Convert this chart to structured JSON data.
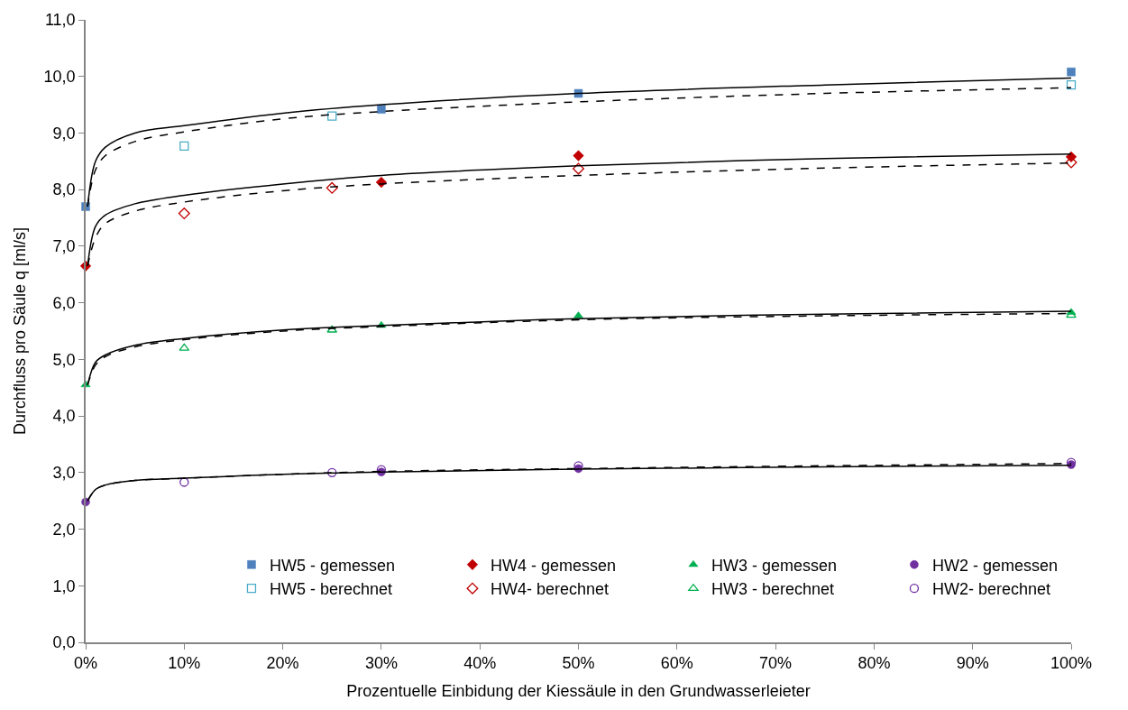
{
  "chart_data": {
    "type": "scatter",
    "xlabel": "Prozentuelle Einbidung der Kiessäule in den Grundwasserleieter",
    "ylabel": "Durchfluss pro Säule q [ml/s]",
    "xlim": [
      0,
      100
    ],
    "ylim": [
      0,
      11
    ],
    "xticks": [
      {
        "value": 0,
        "label": "0%"
      },
      {
        "value": 10,
        "label": "10%"
      },
      {
        "value": 20,
        "label": "20%"
      },
      {
        "value": 30,
        "label": "30%"
      },
      {
        "value": 40,
        "label": "40%"
      },
      {
        "value": 50,
        "label": "50%"
      },
      {
        "value": 60,
        "label": "60%"
      },
      {
        "value": 70,
        "label": "70%"
      },
      {
        "value": 80,
        "label": "80%"
      },
      {
        "value": 90,
        "label": "90%"
      },
      {
        "value": 100,
        "label": "100%"
      }
    ],
    "yticks": [
      {
        "value": 0,
        "label": "0,0"
      },
      {
        "value": 1,
        "label": "1,0"
      },
      {
        "value": 2,
        "label": "2,0"
      },
      {
        "value": 3,
        "label": "3,0"
      },
      {
        "value": 4,
        "label": "4,0"
      },
      {
        "value": 5,
        "label": "5,0"
      },
      {
        "value": 6,
        "label": "6,0"
      },
      {
        "value": 7,
        "label": "7,0"
      },
      {
        "value": 8,
        "label": "8,0"
      },
      {
        "value": 9,
        "label": "9,0"
      },
      {
        "value": 10,
        "label": "10,0"
      },
      {
        "value": 11,
        "label": "11,0"
      }
    ],
    "legend": "bottom",
    "series": [
      {
        "name": "HW5 - gemessen",
        "color": "#4f81bd",
        "marker": "square",
        "x": [
          0,
          30,
          50,
          100
        ],
        "values": [
          7.7,
          9.42,
          9.7,
          10.08
        ]
      },
      {
        "name": "HW4 - gemessen",
        "color": "#c00000",
        "marker": "diamond",
        "x": [
          0,
          30,
          50,
          100
        ],
        "values": [
          6.65,
          8.13,
          8.6,
          8.58
        ]
      },
      {
        "name": "HW3 - gemessen",
        "color": "#00b050",
        "marker": "triangle",
        "x": [
          0,
          30,
          50,
          100
        ],
        "values": [
          4.55,
          5.6,
          5.77,
          5.83
        ]
      },
      {
        "name": "HW2 - gemessen",
        "color": "#7030a0",
        "marker": "circle",
        "x": [
          0,
          30,
          50,
          100
        ],
        "values": [
          2.48,
          3.01,
          3.07,
          3.14
        ]
      },
      {
        "name": "HW5 - berechnet",
        "color": "#4bacc6",
        "marker": "square",
        "x": [
          10,
          25,
          100
        ],
        "values": [
          8.77,
          9.3,
          9.85
        ]
      },
      {
        "name": "HW4- berechnet",
        "color": "#c00000",
        "marker": "diamond",
        "x": [
          10,
          25,
          50,
          100
        ],
        "values": [
          7.58,
          8.03,
          8.37,
          8.48
        ]
      },
      {
        "name": "HW3 - berechnet",
        "color": "#00b050",
        "marker": "triangle",
        "x": [
          10,
          25,
          100
        ],
        "values": [
          5.2,
          5.52,
          5.78
        ]
      },
      {
        "name": "HW2- berechnet",
        "color": "#7030a0",
        "marker": "circle",
        "x": [
          10,
          25,
          30,
          50,
          100
        ],
        "values": [
          2.83,
          3.0,
          3.05,
          3.12,
          3.18
        ]
      },
      {
        "type": "line",
        "color": "#000000",
        "line_style": "solid",
        "marker": "none",
        "x": [
          0.2,
          1,
          2,
          5,
          10,
          20,
          30,
          50,
          75,
          100
        ],
        "values": [
          7.7,
          8.5,
          8.75,
          9.0,
          9.13,
          9.35,
          9.5,
          9.7,
          9.85,
          9.97
        ]
      },
      {
        "type": "line",
        "color": "#000000",
        "line_style": "dashed",
        "marker": "none",
        "x": [
          0.2,
          1,
          2,
          5,
          10,
          20,
          30,
          50,
          75,
          100
        ],
        "values": [
          7.7,
          8.35,
          8.6,
          8.85,
          9.02,
          9.25,
          9.38,
          9.55,
          9.7,
          9.8
        ]
      },
      {
        "type": "line",
        "color": "#000000",
        "line_style": "solid",
        "marker": "none",
        "x": [
          0.2,
          1,
          2,
          5,
          10,
          20,
          30,
          50,
          75,
          100
        ],
        "values": [
          6.65,
          7.35,
          7.55,
          7.75,
          7.9,
          8.1,
          8.25,
          8.42,
          8.55,
          8.63
        ]
      },
      {
        "type": "line",
        "color": "#000000",
        "line_style": "dashed",
        "marker": "none",
        "x": [
          0.2,
          1,
          2,
          5,
          10,
          20,
          30,
          50,
          75,
          100
        ],
        "values": [
          6.65,
          7.15,
          7.4,
          7.62,
          7.78,
          7.98,
          8.1,
          8.25,
          8.38,
          8.47
        ]
      },
      {
        "type": "line",
        "color": "#000000",
        "line_style": "solid",
        "marker": "none",
        "x": [
          0.2,
          1,
          2,
          5,
          10,
          20,
          30,
          50,
          75,
          100
        ],
        "values": [
          4.55,
          4.95,
          5.08,
          5.25,
          5.37,
          5.52,
          5.6,
          5.72,
          5.8,
          5.85
        ]
      },
      {
        "type": "line",
        "color": "#000000",
        "line_style": "dashed",
        "marker": "none",
        "x": [
          0.2,
          1,
          2,
          5,
          10,
          20,
          30,
          50,
          75,
          100
        ],
        "values": [
          4.55,
          4.9,
          5.05,
          5.22,
          5.35,
          5.5,
          5.58,
          5.7,
          5.77,
          5.81
        ]
      },
      {
        "type": "line",
        "color": "#000000",
        "line_style": "solid",
        "marker": "none",
        "x": [
          0.2,
          1,
          2,
          5,
          10,
          20,
          30,
          50,
          75,
          100
        ],
        "values": [
          2.5,
          2.7,
          2.78,
          2.86,
          2.9,
          2.97,
          3.01,
          3.06,
          3.1,
          3.13
        ]
      },
      {
        "type": "line",
        "color": "#000000",
        "line_style": "dashed",
        "marker": "none",
        "x": [
          0.2,
          1,
          2,
          5,
          10,
          20,
          30,
          50,
          75,
          100
        ],
        "values": [
          2.5,
          2.7,
          2.78,
          2.86,
          2.9,
          2.97,
          3.02,
          3.07,
          3.12,
          3.16
        ]
      }
    ]
  }
}
